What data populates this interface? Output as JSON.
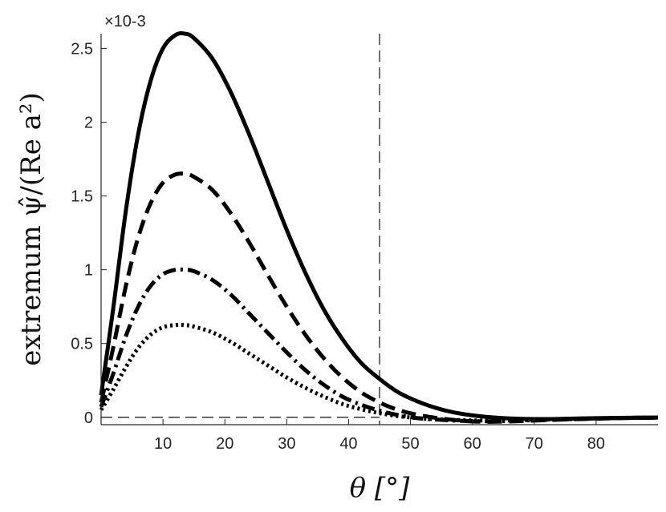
{
  "chart_data": {
    "type": "line",
    "title": "",
    "xlabel": "θ [°]",
    "ylabel": "extremum ψ̂/(Re a²)",
    "xlim": [
      0,
      90
    ],
    "ylim": [
      -0.05,
      2.6
    ],
    "y_multiplier": "×10-3",
    "x_ticks": [
      10,
      20,
      30,
      40,
      50,
      60,
      70,
      80
    ],
    "x_tick_labels": [
      "10",
      "20",
      "30",
      "40",
      "50",
      "60",
      "70",
      "80"
    ],
    "y_ticks": [
      0,
      0.5,
      1,
      1.5,
      2,
      2.5
    ],
    "y_tick_labels": [
      "0",
      "0.5",
      "1",
      "1.5",
      "2",
      "2.5"
    ],
    "legend": "none",
    "grid": false,
    "reference_lines": [
      {
        "orientation": "vertical",
        "x": 45,
        "style": "dashed"
      },
      {
        "orientation": "horizontal",
        "y": 0,
        "style": "dashed"
      }
    ],
    "x": [
      0,
      2,
      4,
      6,
      8,
      10,
      12,
      13.5,
      15,
      18,
      21,
      24,
      27,
      30,
      33,
      36,
      39,
      42,
      45,
      48,
      51,
      54,
      57,
      60,
      63,
      66,
      70,
      75,
      80,
      85,
      90
    ],
    "series": [
      {
        "style": "solid",
        "values": [
          0.15,
          0.75,
          1.4,
          1.92,
          2.28,
          2.5,
          2.59,
          2.6,
          2.57,
          2.43,
          2.2,
          1.91,
          1.59,
          1.27,
          0.98,
          0.73,
          0.53,
          0.37,
          0.26,
          0.17,
          0.11,
          0.065,
          0.033,
          0.013,
          0.0,
          -0.008,
          -0.012,
          -0.01,
          -0.006,
          -0.003,
          -0.002
        ]
      },
      {
        "style": "dashed",
        "values": [
          0.1,
          0.48,
          0.89,
          1.22,
          1.45,
          1.59,
          1.645,
          1.65,
          1.63,
          1.54,
          1.38,
          1.18,
          0.96,
          0.75,
          0.56,
          0.4,
          0.27,
          0.17,
          0.1,
          0.05,
          0.018,
          -0.003,
          -0.018,
          -0.028,
          -0.03,
          -0.028,
          -0.022,
          -0.015,
          -0.009,
          -0.005,
          -0.003
        ]
      },
      {
        "style": "dash-dot",
        "values": [
          0.07,
          0.3,
          0.55,
          0.75,
          0.89,
          0.97,
          1.0,
          1.0,
          0.99,
          0.93,
          0.83,
          0.7,
          0.57,
          0.44,
          0.32,
          0.22,
          0.14,
          0.085,
          0.045,
          0.015,
          -0.005,
          -0.015,
          -0.022,
          -0.026,
          -0.027,
          -0.025,
          -0.02,
          -0.013,
          -0.008,
          -0.004,
          -0.002
        ]
      },
      {
        "style": "dotted",
        "values": [
          0.05,
          0.19,
          0.34,
          0.47,
          0.56,
          0.61,
          0.625,
          0.625,
          0.615,
          0.575,
          0.51,
          0.43,
          0.35,
          0.27,
          0.2,
          0.14,
          0.09,
          0.055,
          0.028,
          0.008,
          -0.005,
          -0.013,
          -0.018,
          -0.021,
          -0.022,
          -0.021,
          -0.017,
          -0.011,
          -0.007,
          -0.004,
          -0.002
        ]
      }
    ]
  }
}
